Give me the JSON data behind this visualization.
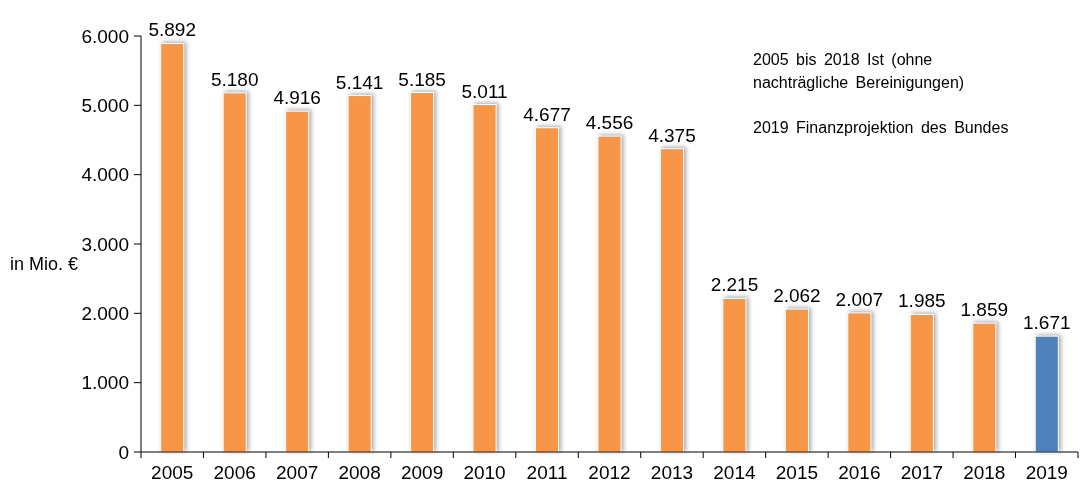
{
  "chart_data": {
    "type": "bar",
    "ylabel": "in Mio. €",
    "categories": [
      "2005",
      "2006",
      "2007",
      "2008",
      "2009",
      "2010",
      "2011",
      "2012",
      "2013",
      "2014",
      "2015",
      "2016",
      "2017",
      "2018",
      "2019"
    ],
    "values": [
      5892,
      5180,
      4916,
      5141,
      5185,
      5011,
      4677,
      4556,
      4375,
      2215,
      2062,
      2007,
      1985,
      1859,
      1671
    ],
    "colors": [
      "#f79646",
      "#f79646",
      "#f79646",
      "#f79646",
      "#f79646",
      "#f79646",
      "#f79646",
      "#f79646",
      "#f79646",
      "#f79646",
      "#f79646",
      "#f79646",
      "#f79646",
      "#f79646",
      "#4f81bd"
    ],
    "value_labels": [
      "5.892",
      "5.180",
      "4.916",
      "5.141",
      "5.185",
      "5.011",
      "4.677",
      "4.556",
      "4.375",
      "2.215",
      "2.062",
      "2.007",
      "1.985",
      "1.859",
      "1.671"
    ],
    "ylim": [
      0,
      6000
    ],
    "yticks": [
      0,
      {
        "value": 1000,
        "label": "1.000"
      },
      {
        "value": 2000,
        "label": "2.000"
      },
      {
        "value": 3000,
        "label": "3.000"
      },
      {
        "value": 4000,
        "label": "4.000"
      },
      {
        "value": 5000,
        "label": "5.000"
      },
      {
        "value": 6000,
        "label": "6.000"
      }
    ],
    "annotations": [
      "2005 bis 2018 Ist (ohne nachträgliche Bereinigungen)",
      "2019 Finanzprojektion des Bundes"
    ]
  }
}
